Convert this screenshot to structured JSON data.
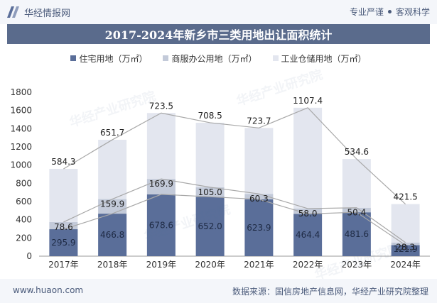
{
  "header": {
    "brand_name": "华经情报网",
    "tagline_left": "专业严谨",
    "tagline_right": "客观科学"
  },
  "watermark_text": "华经产业研究院",
  "chart_data": {
    "type": "bar",
    "stacked": true,
    "title": "2017-2024年新乡市三类用地出让面积统计",
    "categories": [
      "2017年",
      "2018年",
      "2019年",
      "2020年",
      "2021年",
      "2022年",
      "2023年",
      "2024年"
    ],
    "series": [
      {
        "name": "住宅用地（万㎡）",
        "color": "#5a6e99",
        "values": [
          295.9,
          466.8,
          678.6,
          652.0,
          623.9,
          464.4,
          481.6,
          121.9
        ]
      },
      {
        "name": "商服办公用地（万㎡）",
        "color": "#c3cad9",
        "values": [
          78.6,
          159.9,
          169.9,
          105.0,
          60.3,
          58.0,
          50.4,
          28.3
        ]
      },
      {
        "name": "工业仓储用地（万㎡）",
        "color": "#e3e6ef",
        "values": [
          584.3,
          651.7,
          723.5,
          708.5,
          723.7,
          1107.4,
          534.6,
          421.5
        ]
      }
    ],
    "ylim": [
      0,
      1800
    ],
    "yticks": [
      0,
      200,
      400,
      600,
      800,
      1000,
      1200,
      1400,
      1600,
      1800
    ],
    "legend_position": "top",
    "grid": false
  },
  "footer": {
    "url": "www.huaon.com",
    "source": "数据来源：国信房地产信息网，华经产业研究院整理"
  }
}
